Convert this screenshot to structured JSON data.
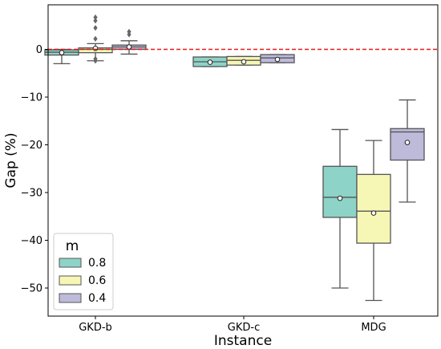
{
  "chart_data": {
    "type": "box",
    "xlabel": "Instance",
    "ylabel": "Gap (%)",
    "categories": [
      "GKD-b",
      "GKD-c",
      "MDG"
    ],
    "ylim": [
      -55,
      8
    ],
    "yticks": [
      0,
      -10,
      -20,
      -30,
      -40,
      -50
    ],
    "reference_line": {
      "y": 0,
      "style": "dashed",
      "color": "#e31a1c"
    },
    "legend": {
      "title": "m",
      "position": "lower-left"
    },
    "series": [
      {
        "name": "0.8",
        "color": "#8dd3c7",
        "boxes": [
          {
            "category": "GKD-b",
            "whisker_low": -3.0,
            "q1": -1.2,
            "median": -0.6,
            "q3": -0.1,
            "whisker_high": 0.0,
            "mean": -0.7,
            "outliers": []
          },
          {
            "category": "GKD-c",
            "whisker_low": -3.6,
            "q1": -3.6,
            "median": -2.6,
            "q3": -1.6,
            "whisker_high": -1.6,
            "mean": -2.7,
            "outliers": []
          },
          {
            "category": "MDG",
            "whisker_low": -50.0,
            "q1": -35.2,
            "median": -31.0,
            "q3": -24.5,
            "whisker_high": -16.8,
            "mean": -31.2,
            "outliers": []
          }
        ]
      },
      {
        "name": "0.6",
        "color": "#f7f7b5",
        "boxes": [
          {
            "category": "GKD-b",
            "whisker_low": -2.4,
            "q1": -0.7,
            "median": 0.0,
            "q3": 0.3,
            "whisker_high": 1.2,
            "mean": 0.2,
            "outliers": [
              -2.0,
              -2.4,
              2.2,
              4.5,
              6.0,
              6.7
            ]
          },
          {
            "category": "GKD-c",
            "whisker_low": -3.3,
            "q1": -3.3,
            "median": -2.3,
            "q3": -1.5,
            "whisker_high": -1.5,
            "mean": -2.6,
            "outliers": []
          },
          {
            "category": "MDG",
            "whisker_low": -52.6,
            "q1": -40.6,
            "median": -33.9,
            "q3": -26.2,
            "whisker_high": -19.1,
            "mean": -34.3,
            "outliers": []
          }
        ]
      },
      {
        "name": "0.4",
        "color": "#bebada",
        "boxes": [
          {
            "category": "GKD-b",
            "whisker_low": -1.0,
            "q1": 0.0,
            "median": 0.5,
            "q3": 0.9,
            "whisker_high": 1.8,
            "mean": 0.5,
            "outliers": [
              3.1,
              3.7
            ]
          },
          {
            "category": "GKD-c",
            "whisker_low": -2.8,
            "q1": -2.8,
            "median": -1.8,
            "q3": -1.1,
            "whisker_high": -1.1,
            "mean": -2.1,
            "outliers": []
          },
          {
            "category": "MDG",
            "whisker_low": -32.0,
            "q1": -23.2,
            "median": -17.3,
            "q3": -16.6,
            "whisker_high": -10.6,
            "mean": -19.5,
            "outliers": []
          }
        ]
      }
    ]
  }
}
